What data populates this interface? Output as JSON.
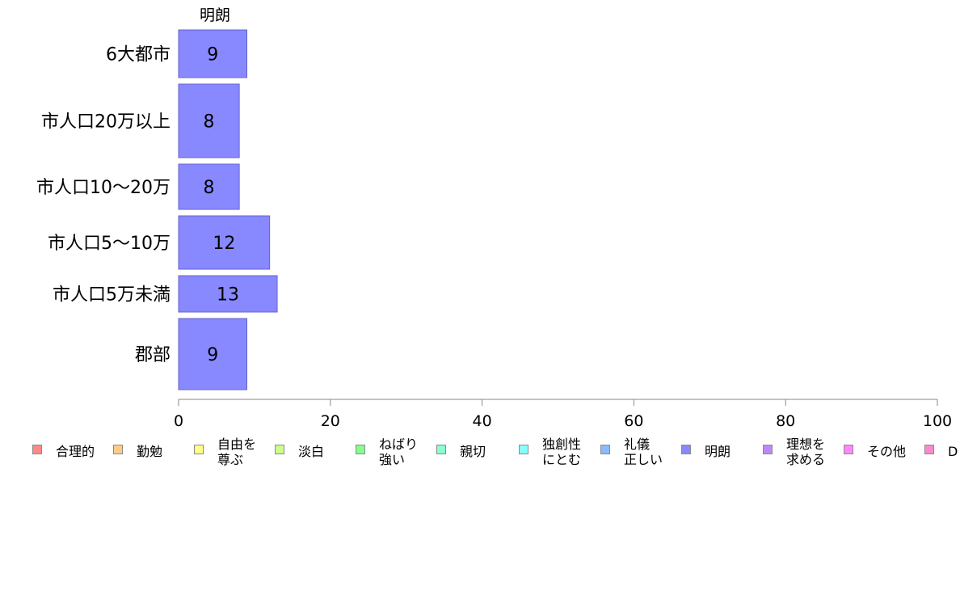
{
  "chart_data": {
    "type": "bar",
    "orientation": "horizontal",
    "series_label": "明朗",
    "categories": [
      "6大都市",
      "市人口20万以上",
      "市人口10〜20万",
      "市人口5〜10万",
      "市人口5万未満",
      "郡部"
    ],
    "values": [
      9,
      8,
      8,
      12,
      13,
      9
    ],
    "value_labels": [
      "9",
      "8",
      "8",
      "12",
      "13",
      "9"
    ],
    "bar_color": "#8888ff",
    "bar_border_color": "#6666cc",
    "xlim": [
      0,
      100
    ],
    "x_ticks": [
      "0",
      "20",
      "40",
      "60",
      "80",
      "100"
    ],
    "grid": false,
    "legend_position": "bottom",
    "legend": [
      {
        "label": "合理的",
        "color": "#ff8888"
      },
      {
        "label": "勤勉",
        "color": "#ffcc88"
      },
      {
        "label": "自由を\n尊ぶ",
        "color": "#ffff88"
      },
      {
        "label": "淡白",
        "color": "#ccff88"
      },
      {
        "label": "ねばり\n強い",
        "color": "#88ff88"
      },
      {
        "label": "親切",
        "color": "#88ffcc"
      },
      {
        "label": "独創性\nにとむ",
        "color": "#88ffff"
      },
      {
        "label": "礼儀\n正しい",
        "color": "#88bbff"
      },
      {
        "label": "明朗",
        "color": "#8888ff"
      },
      {
        "label": "理想を\n求める",
        "color": "#bb88ff"
      },
      {
        "label": "その他",
        "color": "#ff88ff"
      },
      {
        "label": "D",
        "color": "#ff88cc"
      }
    ]
  }
}
